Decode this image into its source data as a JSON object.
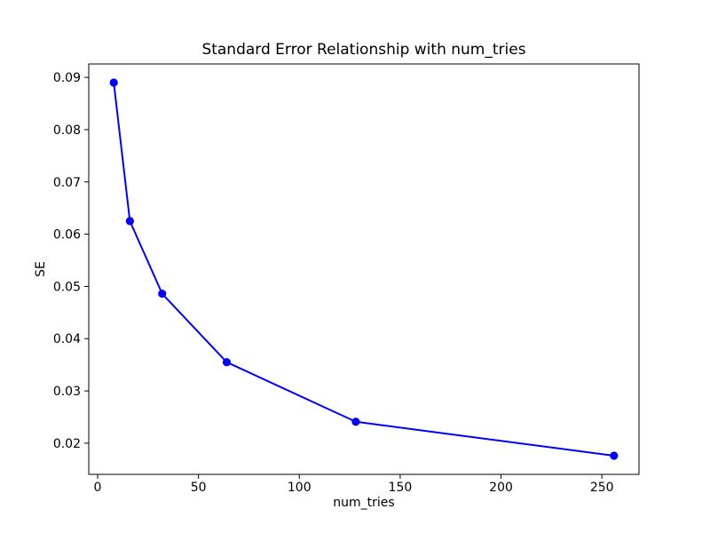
{
  "chart_data": {
    "type": "line",
    "title": "Standard Error Relationship with num_tries",
    "xlabel": "num_tries",
    "ylabel": "SE",
    "x": [
      8,
      16,
      32,
      64,
      128,
      256
    ],
    "y": [
      0.089,
      0.0625,
      0.0486,
      0.0355,
      0.0241,
      0.0176
    ],
    "xlim": [
      -4.4,
      268.4
    ],
    "ylim": [
      0.01403,
      0.09257
    ],
    "xticks": [
      0,
      50,
      100,
      150,
      200,
      250
    ],
    "yticks": [
      0.02,
      0.03,
      0.04,
      0.05,
      0.06,
      0.07,
      0.08,
      0.09
    ],
    "xtick_labels": [
      "0",
      "50",
      "100",
      "150",
      "200",
      "250"
    ],
    "ytick_labels": [
      "0.02",
      "0.03",
      "0.04",
      "0.05",
      "0.06",
      "0.07",
      "0.08",
      "0.09"
    ],
    "line_color": "#0000ff",
    "marker": "o",
    "grid": false,
    "legend_position": "none",
    "background_color": "#ffffff",
    "spine_color": "#000000"
  }
}
